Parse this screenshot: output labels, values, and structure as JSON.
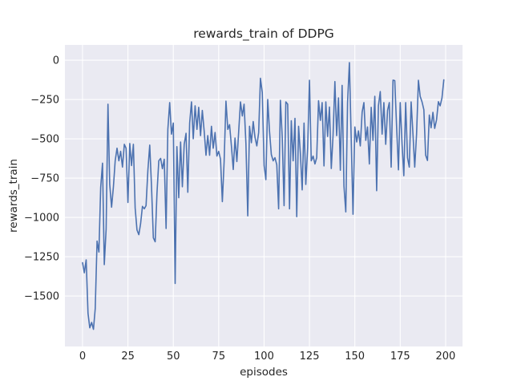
{
  "chart_data": {
    "type": "line",
    "title": "rewards_train of DDPG",
    "xlabel": "episodes",
    "ylabel": "rewards_train",
    "legend": null,
    "grid": true,
    "plot_bg_color": "#eaeaf2",
    "grid_color": "#ffffff",
    "text_color": "#262626",
    "line_color": "#4c72b0",
    "xlim": [
      -9.7,
      209.3
    ],
    "ylim": [
      -1821,
      97
    ],
    "x_ticks": [
      0,
      25,
      50,
      75,
      100,
      125,
      150,
      175,
      200
    ],
    "x_tick_labels": [
      "0",
      "25",
      "50",
      "75",
      "100",
      "125",
      "150",
      "175",
      "200"
    ],
    "y_ticks": [
      0,
      -250,
      -500,
      -750,
      -1000,
      -1250,
      -1500
    ],
    "y_tick_labels": [
      "0",
      "−250",
      "−500",
      "−750",
      "−1000",
      "−1250",
      "−1500"
    ],
    "series": [
      {
        "name": "rewards_train",
        "x_start": 0,
        "x_step": 1,
        "values": [
          -1288,
          -1352,
          -1270,
          -1610,
          -1702,
          -1668,
          -1712,
          -1580,
          -1150,
          -1220,
          -810,
          -655,
          -1300,
          -1075,
          -280,
          -790,
          -935,
          -805,
          -640,
          -560,
          -640,
          -580,
          -680,
          -535,
          -560,
          -905,
          -530,
          -670,
          -535,
          -940,
          -1080,
          -1110,
          -1040,
          -930,
          -945,
          -925,
          -700,
          -540,
          -800,
          -1130,
          -1155,
          -850,
          -640,
          -625,
          -690,
          -630,
          -1070,
          -440,
          -270,
          -470,
          -400,
          -1420,
          -550,
          -875,
          -520,
          -805,
          -535,
          -465,
          -840,
          -400,
          -265,
          -500,
          -290,
          -440,
          -300,
          -480,
          -320,
          -450,
          -605,
          -480,
          -605,
          -420,
          -560,
          -460,
          -610,
          -580,
          -630,
          -900,
          -645,
          -260,
          -440,
          -410,
          -545,
          -695,
          -495,
          -645,
          -460,
          -265,
          -355,
          -280,
          -530,
          -990,
          -420,
          -525,
          -390,
          -490,
          -545,
          -460,
          -115,
          -205,
          -670,
          -760,
          -250,
          -450,
          -600,
          -640,
          -620,
          -665,
          -945,
          -255,
          -490,
          -925,
          -265,
          -280,
          -945,
          -385,
          -640,
          -370,
          -995,
          -420,
          -590,
          -825,
          -400,
          -790,
          -560,
          -128,
          -640,
          -610,
          -660,
          -620,
          -258,
          -383,
          -270,
          -672,
          -265,
          -485,
          -298,
          -689,
          -480,
          -136,
          -480,
          -240,
          -700,
          -160,
          -800,
          -965,
          -270,
          -15,
          -510,
          -980,
          -425,
          -520,
          -450,
          -545,
          -330,
          -270,
          -510,
          -425,
          -660,
          -300,
          -510,
          -230,
          -830,
          -290,
          -200,
          -470,
          -270,
          -535,
          -320,
          -270,
          -680,
          -127,
          -130,
          -425,
          -697,
          -270,
          -535,
          -735,
          -270,
          -620,
          -680,
          -265,
          -470,
          -680,
          -470,
          -128,
          -230,
          -265,
          -315,
          -604,
          -638,
          -349,
          -430,
          -332,
          -434,
          -380,
          -264,
          -290,
          -240,
          -125
        ]
      }
    ]
  }
}
